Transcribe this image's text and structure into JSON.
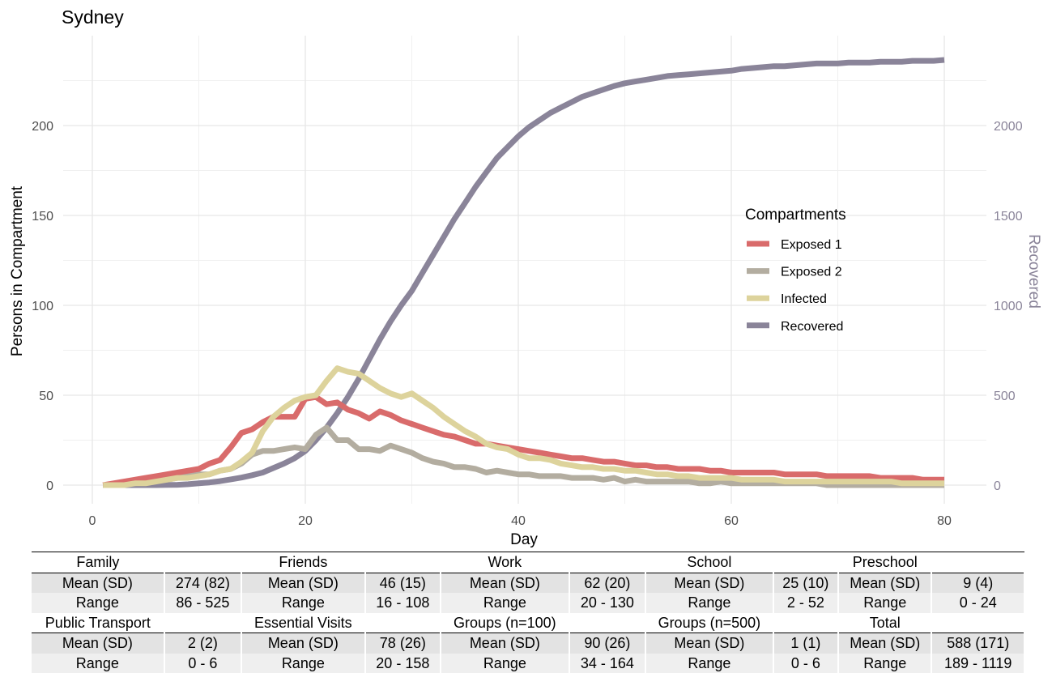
{
  "chart_data": {
    "type": "line",
    "title": "Sydney",
    "xlabel": "Day",
    "ylabel": "Persons in Compartment",
    "y2label": "Recovered",
    "xlim": [
      0,
      80
    ],
    "ylim": [
      0,
      240
    ],
    "y2lim": [
      0,
      2400
    ],
    "xticks": [
      0,
      20,
      40,
      60,
      80
    ],
    "yticks": [
      0,
      50,
      100,
      150,
      200
    ],
    "y2ticks": [
      0,
      500,
      1000,
      1500,
      2000
    ],
    "grid": true,
    "legend_title": "Compartments",
    "legend_position": "right",
    "series": [
      {
        "name": "Exposed 1",
        "color": "#d96b6b",
        "axis": "left",
        "x": [
          1,
          2,
          3,
          4,
          5,
          6,
          7,
          8,
          9,
          10,
          11,
          12,
          13,
          14,
          15,
          16,
          17,
          18,
          19,
          20,
          21,
          22,
          23,
          24,
          25,
          26,
          27,
          28,
          29,
          30,
          31,
          32,
          33,
          34,
          35,
          36,
          37,
          38,
          39,
          40,
          41,
          42,
          43,
          44,
          45,
          46,
          47,
          48,
          49,
          50,
          51,
          52,
          53,
          54,
          55,
          56,
          57,
          58,
          59,
          60,
          61,
          62,
          63,
          64,
          65,
          66,
          67,
          68,
          69,
          70,
          71,
          72,
          73,
          74,
          75,
          76,
          77,
          78,
          79,
          80
        ],
        "y": [
          0,
          1,
          2,
          3,
          4,
          5,
          6,
          7,
          8,
          9,
          12,
          14,
          21,
          29,
          31,
          35,
          38,
          38,
          38,
          48,
          49,
          45,
          46,
          42,
          40,
          37,
          41,
          39,
          36,
          34,
          32,
          30,
          28,
          27,
          25,
          23,
          23,
          22,
          21,
          20,
          19,
          18,
          17,
          16,
          15,
          15,
          14,
          13,
          13,
          12,
          11,
          11,
          10,
          10,
          9,
          9,
          9,
          8,
          8,
          7,
          7,
          7,
          7,
          7,
          6,
          6,
          6,
          6,
          5,
          5,
          5,
          5,
          5,
          4,
          4,
          4,
          4,
          3,
          3,
          3
        ]
      },
      {
        "name": "Exposed 2",
        "color": "#b3ada0",
        "axis": "left",
        "x": [
          1,
          2,
          3,
          4,
          5,
          6,
          7,
          8,
          9,
          10,
          11,
          12,
          13,
          14,
          15,
          16,
          17,
          18,
          19,
          20,
          21,
          22,
          23,
          24,
          25,
          26,
          27,
          28,
          29,
          30,
          31,
          32,
          33,
          34,
          35,
          36,
          37,
          38,
          39,
          40,
          41,
          42,
          43,
          44,
          45,
          46,
          47,
          48,
          49,
          50,
          51,
          52,
          53,
          54,
          55,
          56,
          57,
          58,
          59,
          60,
          61,
          62,
          63,
          64,
          65,
          66,
          67,
          68,
          69,
          70,
          71,
          72,
          73,
          74,
          75,
          76,
          77,
          78,
          79,
          80
        ],
        "y": [
          0,
          0,
          1,
          1,
          2,
          3,
          3,
          4,
          5,
          6,
          6,
          8,
          9,
          12,
          17,
          19,
          19,
          20,
          21,
          20,
          28,
          32,
          25,
          25,
          20,
          20,
          19,
          22,
          20,
          18,
          15,
          13,
          12,
          10,
          10,
          9,
          7,
          8,
          7,
          6,
          6,
          5,
          5,
          5,
          4,
          4,
          4,
          3,
          4,
          2,
          3,
          2,
          2,
          2,
          2,
          2,
          1,
          1,
          2,
          1,
          1,
          1,
          1,
          1,
          1,
          1,
          1,
          1,
          0,
          0,
          0,
          0,
          0,
          0,
          0,
          0,
          0,
          0,
          0,
          0
        ]
      },
      {
        "name": "Infected",
        "color": "#ddd39c",
        "axis": "left",
        "x": [
          1,
          2,
          3,
          4,
          5,
          6,
          7,
          8,
          9,
          10,
          11,
          12,
          13,
          14,
          15,
          16,
          17,
          18,
          19,
          20,
          21,
          22,
          23,
          24,
          25,
          26,
          27,
          28,
          29,
          30,
          31,
          32,
          33,
          34,
          35,
          36,
          37,
          38,
          39,
          40,
          41,
          42,
          43,
          44,
          45,
          46,
          47,
          48,
          49,
          50,
          51,
          52,
          53,
          54,
          55,
          56,
          57,
          58,
          59,
          60,
          61,
          62,
          63,
          64,
          65,
          66,
          67,
          68,
          69,
          70,
          71,
          72,
          73,
          74,
          75,
          76,
          77,
          78,
          79,
          80
        ],
        "y": [
          0,
          0,
          0,
          1,
          1,
          2,
          3,
          4,
          4,
          5,
          6,
          8,
          9,
          13,
          18,
          30,
          38,
          43,
          47,
          49,
          50,
          58,
          65,
          63,
          62,
          58,
          54,
          51,
          49,
          51,
          47,
          43,
          38,
          34,
          30,
          27,
          23,
          21,
          20,
          17,
          15,
          15,
          14,
          12,
          11,
          10,
          10,
          9,
          9,
          8,
          8,
          7,
          6,
          6,
          5,
          5,
          4,
          4,
          4,
          4,
          3,
          3,
          3,
          3,
          2,
          2,
          2,
          2,
          2,
          2,
          2,
          2,
          2,
          2,
          2,
          1,
          1,
          1,
          1,
          1
        ]
      },
      {
        "name": "Recovered",
        "color": "#8a8499",
        "axis": "right",
        "x": [
          1,
          2,
          3,
          4,
          5,
          6,
          7,
          8,
          9,
          10,
          11,
          12,
          13,
          14,
          15,
          16,
          17,
          18,
          19,
          20,
          21,
          22,
          23,
          24,
          25,
          26,
          27,
          28,
          29,
          30,
          31,
          32,
          33,
          34,
          35,
          36,
          37,
          38,
          39,
          40,
          41,
          42,
          43,
          44,
          45,
          46,
          47,
          48,
          49,
          50,
          51,
          52,
          53,
          54,
          55,
          56,
          57,
          58,
          59,
          60,
          61,
          62,
          63,
          64,
          65,
          66,
          67,
          68,
          69,
          70,
          71,
          72,
          73,
          74,
          75,
          76,
          77,
          78,
          79,
          80
        ],
        "y": [
          0,
          0,
          0,
          0,
          0,
          0,
          1,
          2,
          5,
          10,
          15,
          22,
          32,
          42,
          55,
          70,
          95,
          120,
          150,
          190,
          250,
          320,
          400,
          490,
          590,
          700,
          810,
          910,
          1000,
          1080,
          1180,
          1280,
          1380,
          1480,
          1570,
          1660,
          1740,
          1820,
          1880,
          1940,
          1990,
          2030,
          2070,
          2100,
          2130,
          2160,
          2180,
          2200,
          2220,
          2235,
          2245,
          2255,
          2265,
          2275,
          2280,
          2285,
          2290,
          2295,
          2300,
          2305,
          2315,
          2320,
          2325,
          2330,
          2330,
          2335,
          2340,
          2345,
          2345,
          2345,
          2350,
          2350,
          2350,
          2355,
          2355,
          2355,
          2360,
          2360,
          2360,
          2365
        ]
      }
    ]
  },
  "table": {
    "groups": [
      {
        "name": "Family",
        "mean": "274 (82)",
        "range": "86 - 525"
      },
      {
        "name": "Friends",
        "mean": "46 (15)",
        "range": "16 - 108"
      },
      {
        "name": "Work",
        "mean": "62 (20)",
        "range": "20 - 130"
      },
      {
        "name": "School",
        "mean": "25 (10)",
        "range": "2 - 52"
      },
      {
        "name": "Preschool",
        "mean": "9 (4)",
        "range": "0 - 24"
      },
      {
        "name": "Public Transport",
        "mean": "2 (2)",
        "range": "0 - 6"
      },
      {
        "name": "Essential Visits",
        "mean": "78 (26)",
        "range": "20 - 158"
      },
      {
        "name": "Groups (n=100)",
        "mean": "90 (26)",
        "range": "34 - 164"
      },
      {
        "name": "Groups (n=500)",
        "mean": "1 (1)",
        "range": "0 - 6"
      },
      {
        "name": "Total",
        "mean": "588 (171)",
        "range": "189 - 1119"
      }
    ],
    "mean_label": "Mean (SD)",
    "range_label": "Range"
  }
}
